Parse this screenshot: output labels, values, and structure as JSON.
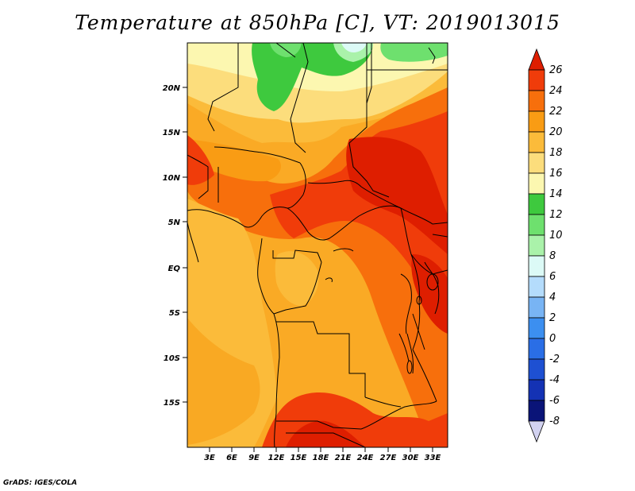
{
  "title": "Temperature at 850hPa [C], VT: 2019013015",
  "credit": "GrADS: IGES/COLA",
  "map": {
    "lat_labels": [
      "20N",
      "15N",
      "10N",
      "5N",
      "EQ",
      "5S",
      "10S",
      "15S"
    ],
    "lon_labels": [
      "3E",
      "6E",
      "9E",
      "12E",
      "15E",
      "18E",
      "21E",
      "24E",
      "27E",
      "30E",
      "33E"
    ]
  },
  "colorbar": {
    "levels": [
      "26",
      "24",
      "22",
      "20",
      "18",
      "16",
      "14",
      "12",
      "10",
      "8",
      "6",
      "4",
      "2",
      "0",
      "-2",
      "-4",
      "-6",
      "-8"
    ],
    "colors": [
      "#de1e00",
      "#f03c0a",
      "#f76f0c",
      "#f99c14",
      "#fbbb3a",
      "#fcdd7c",
      "#fcf7b0",
      "#3ec93e",
      "#6ee06e",
      "#aaf2aa",
      "#dcfaf6",
      "#b4dcfc",
      "#78b4f4",
      "#3c8ff0",
      "#2a6ee6",
      "#1e50d2",
      "#1432b4",
      "#0a1478",
      "#d2d2f0"
    ]
  }
}
